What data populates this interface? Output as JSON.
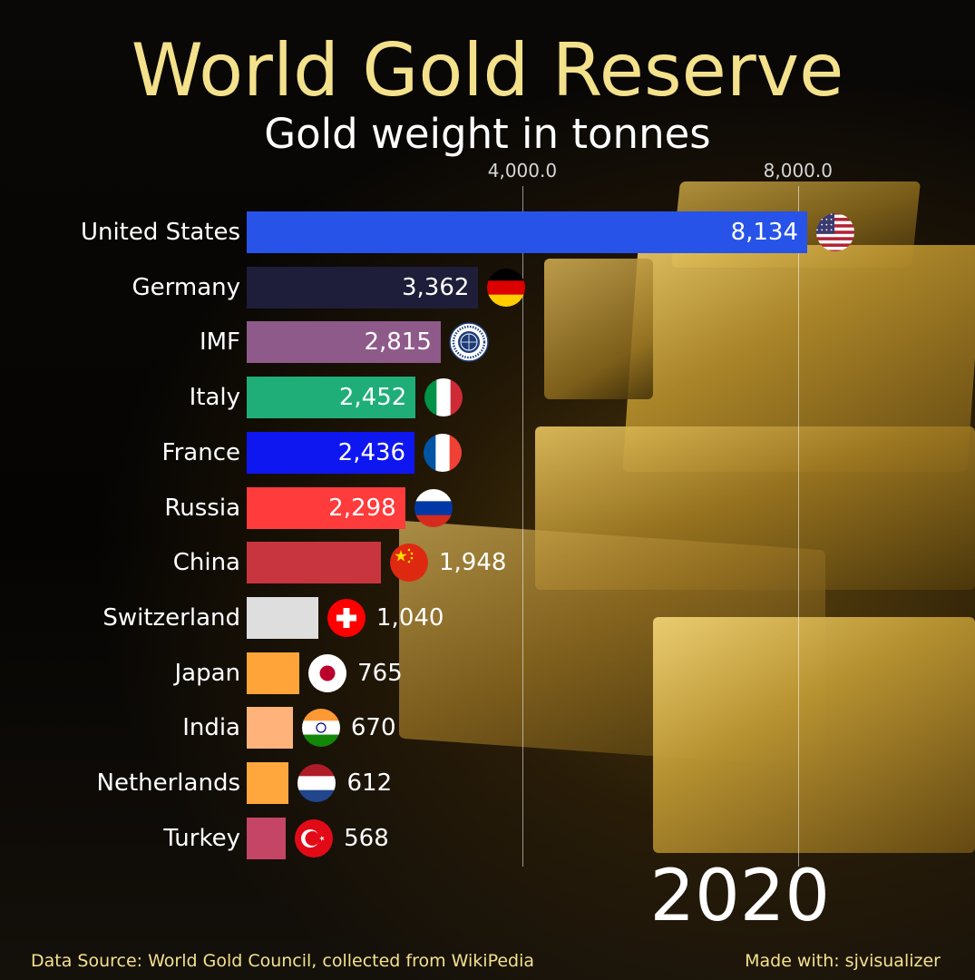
{
  "title": "World Gold Reserve",
  "subtitle": "Gold weight in tonnes",
  "year": "2020",
  "source": "Data Source: World Gold Council, collected from WikiPedia",
  "made_with": "Made with: sjvisualizer",
  "chart_data": {
    "type": "bar",
    "orientation": "horizontal",
    "title": "World Gold Reserve",
    "subtitle": "Gold weight in tonnes",
    "xlim": [
      0,
      8300
    ],
    "ticks": [
      {
        "value": 4000,
        "label": "4,000.0"
      },
      {
        "value": 8000,
        "label": "8,000.0"
      }
    ],
    "grid": true,
    "categories": [
      "United States",
      "Germany",
      "IMF",
      "Italy",
      "France",
      "Russia",
      "China",
      "Switzerland",
      "Japan",
      "India",
      "Netherlands",
      "Turkey"
    ],
    "values": [
      8134,
      3362,
      2815,
      2452,
      2436,
      2298,
      1948,
      1040,
      765,
      670,
      612,
      568
    ],
    "value_labels": [
      "8,134",
      "3,362",
      "2,815",
      "2,452",
      "2,436",
      "2,298",
      "1,948",
      "1,040",
      "765",
      "670",
      "612",
      "568"
    ],
    "colors": [
      "#2753e8",
      "#1e1e3a",
      "#8e5a8a",
      "#1fae78",
      "#0f17f0",
      "#ff3b3b",
      "#c9353f",
      "#dedede",
      "#ffa438",
      "#ffb27a",
      "#ffa73d",
      "#c44565"
    ],
    "flags": [
      "us-flag-icon",
      "germany-flag-icon",
      "imf-logo-icon",
      "italy-flag-icon",
      "france-flag-icon",
      "russia-flag-icon",
      "china-flag-icon",
      "switzerland-flag-icon",
      "japan-flag-icon",
      "india-flag-icon",
      "netherlands-flag-icon",
      "turkey-flag-icon"
    ]
  }
}
